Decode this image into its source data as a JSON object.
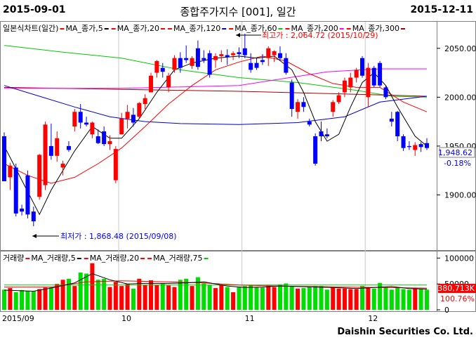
{
  "header": {
    "start_date": "2015-09-01",
    "title": "종합주가지수 [001], 일간",
    "end_date": "2015-12-11"
  },
  "footer": {
    "brand": "Daishin Securities Co. Ltd."
  },
  "colors": {
    "up": "#ff0000",
    "down": "#0000ff",
    "ma5": "#000000",
    "ma20": "#ff0000",
    "ma60": "#00cc00",
    "ma120": "#0000cc",
    "ma200": "#ff00ff",
    "ma300": "#aa0000",
    "vol_up": "#ff0000",
    "vol_down": "#00dd00"
  },
  "chart_data": [
    {
      "type": "candlestick",
      "legend_label": "일본식차트(일간)",
      "legend": [
        "MA_종가,5",
        "MA_종가,20",
        "MA_종가,120",
        "MA_종가,60",
        "MA_종가,200",
        "MA_종가,300"
      ],
      "ylim": [
        1845,
        2075
      ],
      "y_ticks": [
        "2050.00",
        "2000.00",
        "1950.00",
        "1900.00"
      ],
      "x_labels": [
        {
          "i": 0,
          "label": "2015/09"
        },
        {
          "i": 20,
          "label": "10"
        },
        {
          "i": 41,
          "label": "11"
        },
        {
          "i": 62,
          "label": "12"
        }
      ],
      "current_price": "1,948.62",
      "change_pct": "-0.18%",
      "high_annotation": "최고가 : 2,064.72 (2015/10/29)",
      "low_annotation": "최저가 : 1,868.48 (2015/09/08)",
      "candles": [
        {
          "o": 1960,
          "h": 1964,
          "l": 1914,
          "c": 1914
        },
        {
          "o": 1918,
          "h": 1933,
          "l": 1905,
          "c": 1930
        },
        {
          "o": 1928,
          "h": 1932,
          "l": 1878,
          "c": 1881
        },
        {
          "o": 1886,
          "h": 1890,
          "l": 1879,
          "c": 1883
        },
        {
          "o": 1920,
          "h": 1925,
          "l": 1876,
          "c": 1880
        },
        {
          "o": 1883,
          "h": 1888,
          "l": 1868,
          "c": 1873
        },
        {
          "o": 1898,
          "h": 1942,
          "l": 1895,
          "c": 1941
        },
        {
          "o": 1910,
          "h": 1975,
          "l": 1905,
          "c": 1972
        },
        {
          "o": 1950,
          "h": 1973,
          "l": 1936,
          "c": 1940
        },
        {
          "o": 1940,
          "h": 1965,
          "l": 1934,
          "c": 1958
        },
        {
          "o": 1928,
          "h": 1935,
          "l": 1920,
          "c": 1932
        },
        {
          "o": 1950,
          "h": 1955,
          "l": 1944,
          "c": 1946
        },
        {
          "o": 1970,
          "h": 1988,
          "l": 1965,
          "c": 1985
        },
        {
          "o": 1985,
          "h": 1993,
          "l": 1968,
          "c": 1974
        },
        {
          "o": 1974,
          "h": 1980,
          "l": 1970,
          "c": 1972
        },
        {
          "o": 1962,
          "h": 1975,
          "l": 1958,
          "c": 1974
        },
        {
          "o": 1960,
          "h": 1967,
          "l": 1952,
          "c": 1953
        },
        {
          "o": 1965,
          "h": 1970,
          "l": 1950,
          "c": 1952
        },
        {
          "o": 1952,
          "h": 1961,
          "l": 1946,
          "c": 1955
        },
        {
          "o": 1915,
          "h": 1950,
          "l": 1912,
          "c": 1947
        },
        {
          "o": 1962,
          "h": 1984,
          "l": 1962,
          "c": 1978
        },
        {
          "o": 1978,
          "h": 1992,
          "l": 1968,
          "c": 1985
        },
        {
          "o": 1982,
          "h": 1989,
          "l": 1970,
          "c": 1974
        },
        {
          "o": 1980,
          "h": 1995,
          "l": 1978,
          "c": 1994
        },
        {
          "o": 1993,
          "h": 2003,
          "l": 1988,
          "c": 1999
        },
        {
          "o": 2005,
          "h": 2025,
          "l": 2005,
          "c": 2022
        },
        {
          "o": 2025,
          "h": 2038,
          "l": 2020,
          "c": 2037
        },
        {
          "o": 2030,
          "h": 2035,
          "l": 2020,
          "c": 2026
        },
        {
          "o": 2010,
          "h": 2025,
          "l": 2005,
          "c": 2022
        },
        {
          "o": 2028,
          "h": 2043,
          "l": 2025,
          "c": 2040
        },
        {
          "o": 2040,
          "h": 2046,
          "l": 2025,
          "c": 2030
        },
        {
          "o": 2040,
          "h": 2053,
          "l": 2035,
          "c": 2038
        },
        {
          "o": 2032,
          "h": 2042,
          "l": 2029,
          "c": 2040
        },
        {
          "o": 2050,
          "h": 2058,
          "l": 2028,
          "c": 2031
        },
        {
          "o": 2040,
          "h": 2048,
          "l": 2035,
          "c": 2038
        },
        {
          "o": 2045,
          "h": 2048,
          "l": 2020,
          "c": 2023
        },
        {
          "o": 2038,
          "h": 2045,
          "l": 2030,
          "c": 2042
        },
        {
          "o": 2042,
          "h": 2048,
          "l": 2036,
          "c": 2044
        },
        {
          "o": 2043,
          "h": 2049,
          "l": 2033,
          "c": 2041
        },
        {
          "o": 2043,
          "h": 2047,
          "l": 2038,
          "c": 2045
        },
        {
          "o": 2046,
          "h": 2051,
          "l": 2040,
          "c": 2044
        },
        {
          "o": 2050,
          "h": 2065,
          "l": 2040,
          "c": 2043
        },
        {
          "o": 2035,
          "h": 2045,
          "l": 2025,
          "c": 2028
        },
        {
          "o": 2035,
          "h": 2040,
          "l": 2028,
          "c": 2030
        },
        {
          "o": 2038,
          "h": 2044,
          "l": 2033,
          "c": 2036
        },
        {
          "o": 2040,
          "h": 2052,
          "l": 2032,
          "c": 2050
        },
        {
          "o": 2043,
          "h": 2048,
          "l": 2036,
          "c": 2047
        },
        {
          "o": 2045,
          "h": 2052,
          "l": 2038,
          "c": 2040
        },
        {
          "o": 2040,
          "h": 2045,
          "l": 2023,
          "c": 2025
        },
        {
          "o": 2015,
          "h": 2018,
          "l": 1980,
          "c": 1988
        },
        {
          "o": 1985,
          "h": 1998,
          "l": 1978,
          "c": 1995
        },
        {
          "o": 1995,
          "h": 2000,
          "l": 1985,
          "c": 1990
        },
        {
          "o": 1975,
          "h": 1978,
          "l": 1970,
          "c": 1972
        },
        {
          "o": 1960,
          "h": 1963,
          "l": 1930,
          "c": 1932
        },
        {
          "o": 1965,
          "h": 1975,
          "l": 1955,
          "c": 1960
        },
        {
          "o": 1962,
          "h": 1968,
          "l": 1958,
          "c": 1960
        },
        {
          "o": 1985,
          "h": 1997,
          "l": 1980,
          "c": 1995
        },
        {
          "o": 1995,
          "h": 2005,
          "l": 1993,
          "c": 2002
        },
        {
          "o": 2005,
          "h": 2020,
          "l": 2000,
          "c": 2017
        },
        {
          "o": 2010,
          "h": 2025,
          "l": 2005,
          "c": 2020
        },
        {
          "o": 2020,
          "h": 2030,
          "l": 2015,
          "c": 2028
        },
        {
          "o": 2040,
          "h": 2042,
          "l": 2020,
          "c": 2022
        },
        {
          "o": 2000,
          "h": 2035,
          "l": 1990,
          "c": 2030
        },
        {
          "o": 2030,
          "h": 2032,
          "l": 2010,
          "c": 2012
        },
        {
          "o": 2035,
          "h": 2037,
          "l": 2010,
          "c": 2012
        },
        {
          "o": 2010,
          "h": 2012,
          "l": 1998,
          "c": 2000
        },
        {
          "o": 1978,
          "h": 1985,
          "l": 1970,
          "c": 1975
        },
        {
          "o": 1985,
          "h": 1986,
          "l": 1955,
          "c": 1960
        },
        {
          "o": 1960,
          "h": 1962,
          "l": 1945,
          "c": 1948
        },
        {
          "o": 1950,
          "h": 1955,
          "l": 1946,
          "c": 1949
        },
        {
          "o": 1946,
          "h": 1954,
          "l": 1940,
          "c": 1951
        },
        {
          "o": 1952,
          "h": 1954,
          "l": 1944,
          "c": 1949
        },
        {
          "o": 1953,
          "h": 1958,
          "l": 1946,
          "c": 1948
        }
      ],
      "ma": {
        "ma5": [
          [
            0,
            1950
          ],
          [
            3,
            1915
          ],
          [
            6,
            1880
          ],
          [
            8,
            1905
          ],
          [
            12,
            1945
          ],
          [
            15,
            1970
          ],
          [
            18,
            1958
          ],
          [
            20,
            1958
          ],
          [
            23,
            1978
          ],
          [
            26,
            2005
          ],
          [
            29,
            2028
          ],
          [
            32,
            2035
          ],
          [
            36,
            2040
          ],
          [
            40,
            2042
          ],
          [
            43,
            2040
          ],
          [
            46,
            2042
          ],
          [
            49,
            2028
          ],
          [
            51,
            2005
          ],
          [
            53,
            1975
          ],
          [
            55,
            1955
          ],
          [
            57,
            1962
          ],
          [
            59,
            1990
          ],
          [
            61,
            2015
          ],
          [
            63,
            2025
          ],
          [
            65,
            2012
          ],
          [
            67,
            1990
          ],
          [
            70,
            1960
          ],
          [
            72,
            1950
          ]
        ],
        "ma20": [
          [
            0,
            1932
          ],
          [
            4,
            1920
          ],
          [
            8,
            1912
          ],
          [
            12,
            1918
          ],
          [
            16,
            1932
          ],
          [
            20,
            1948
          ],
          [
            24,
            1970
          ],
          [
            28,
            1993
          ],
          [
            32,
            2012
          ],
          [
            36,
            2028
          ],
          [
            40,
            2036
          ],
          [
            44,
            2042
          ],
          [
            48,
            2037
          ],
          [
            52,
            2024
          ],
          [
            56,
            2014
          ],
          [
            60,
            2010
          ],
          [
            64,
            2010
          ],
          [
            68,
            1995
          ],
          [
            72,
            1985
          ]
        ],
        "ma60": [
          [
            0,
            2053
          ],
          [
            10,
            2046
          ],
          [
            20,
            2040
          ],
          [
            30,
            2028
          ],
          [
            40,
            2020
          ],
          [
            50,
            2015
          ],
          [
            60,
            2007
          ],
          [
            66,
            2001
          ],
          [
            72,
            2000
          ]
        ],
        "ma120": [
          [
            0,
            2012
          ],
          [
            6,
            2001
          ],
          [
            12,
            1990
          ],
          [
            18,
            1980
          ],
          [
            24,
            1975
          ],
          [
            30,
            1973
          ],
          [
            40,
            1972
          ],
          [
            50,
            1974
          ],
          [
            58,
            1980
          ],
          [
            64,
            1995
          ],
          [
            72,
            2001
          ]
        ],
        "ma200": [
          [
            0,
            2009
          ],
          [
            20,
            2009
          ],
          [
            40,
            2012
          ],
          [
            55,
            2026
          ],
          [
            64,
            2029
          ],
          [
            72,
            2029
          ]
        ],
        "ma300": [
          [
            0,
            2010
          ],
          [
            20,
            2008
          ],
          [
            40,
            2006
          ],
          [
            60,
            2003
          ],
          [
            72,
            2001
          ]
        ]
      }
    },
    {
      "type": "bar",
      "legend_label": "거래량",
      "legend": [
        "MA_거래량,5",
        "MA_거래량,20",
        "MA_거래량,75"
      ],
      "ylim": [
        0,
        110000
      ],
      "y_ticks": [
        "100000",
        "50000",
        "0"
      ],
      "current_volume": "380,713K",
      "volume_ratio": "100.76%",
      "volumes": [
        39000,
        42000,
        34000,
        38000,
        36000,
        36000,
        40000,
        43000,
        44000,
        50000,
        58000,
        60000,
        46000,
        72000,
        70000,
        90000,
        58000,
        60000,
        44000,
        54000,
        46000,
        50000,
        41000,
        60000,
        48000,
        57000,
        48000,
        51000,
        47000,
        44000,
        58000,
        60000,
        46000,
        63000,
        51000,
        48000,
        42000,
        48000,
        44000,
        34000,
        45000,
        46000,
        47000,
        44000,
        43000,
        47000,
        44000,
        49000,
        51000,
        46000,
        41000,
        42000,
        45000,
        46000,
        46000,
        39000,
        43000,
        41000,
        41000,
        40000,
        40000,
        46000,
        44000,
        41000,
        52000,
        44000,
        39000,
        43000,
        40000,
        39000,
        41000,
        40000,
        39000
      ],
      "vol_ma5": [
        [
          0,
          38000
        ],
        [
          5,
          36000
        ],
        [
          8,
          42000
        ],
        [
          12,
          52000
        ],
        [
          15,
          70000
        ],
        [
          18,
          58000
        ],
        [
          21,
          50000
        ],
        [
          24,
          51000
        ],
        [
          28,
          51000
        ],
        [
          31,
          52000
        ],
        [
          34,
          54000
        ],
        [
          38,
          46000
        ],
        [
          41,
          43000
        ],
        [
          44,
          44000
        ],
        [
          47,
          46000
        ],
        [
          50,
          45000
        ],
        [
          53,
          44000
        ],
        [
          56,
          43000
        ],
        [
          60,
          41000
        ],
        [
          63,
          43000
        ],
        [
          66,
          45000
        ],
        [
          69,
          41000
        ],
        [
          72,
          40000
        ]
      ],
      "vol_ma20": [
        [
          0,
          44000
        ],
        [
          8,
          44000
        ],
        [
          14,
          54000
        ],
        [
          20,
          56000
        ],
        [
          28,
          54000
        ],
        [
          34,
          52000
        ],
        [
          40,
          48000
        ],
        [
          46,
          46000
        ],
        [
          52,
          45000
        ],
        [
          58,
          44000
        ],
        [
          64,
          43000
        ],
        [
          72,
          42000
        ]
      ],
      "vol_ma75": [
        [
          0,
          48000
        ],
        [
          20,
          48000
        ],
        [
          40,
          48000
        ],
        [
          60,
          48000
        ],
        [
          72,
          48000
        ]
      ]
    }
  ]
}
